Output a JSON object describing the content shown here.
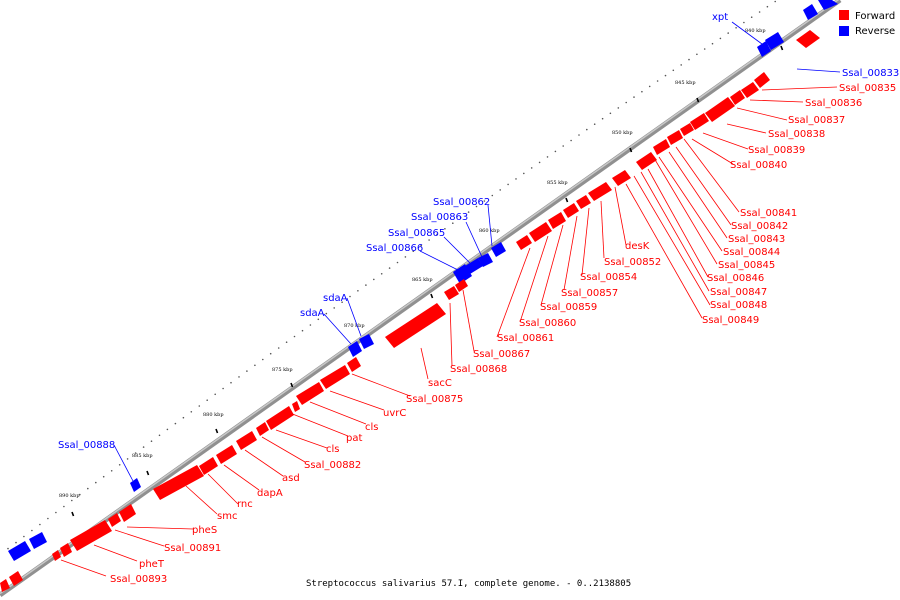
{
  "caption": "Streptococcus salivarius 57.I, complete genome. - 0..2138805",
  "legend": [
    {
      "label": "Forward",
      "color": "#ff0000"
    },
    {
      "label": "Reverse",
      "color": "#0000ff"
    }
  ],
  "colors": {
    "forward": "#ff0000",
    "reverse": "#0000ff",
    "backbone": "#808080"
  },
  "tick_labels": [
    "840 kbp",
    "845 kbp",
    "850 kbp",
    "855 kbp",
    "860 kbp",
    "865 kbp",
    "870 kbp",
    "875 kbp",
    "880 kbp",
    "885 kbp",
    "890 kbp"
  ],
  "reverse_labels": [
    "xpt",
    "Ssal_00833",
    "Ssal_00862",
    "Ssal_00863",
    "Ssal_00865",
    "Ssal_00866",
    "sdaA",
    "sdaA",
    "Ssal_00888"
  ],
  "forward_labels": [
    "Ssal_00835",
    "Ssal_00836",
    "Ssal_00837",
    "Ssal_00838",
    "Ssal_00839",
    "Ssal_00840",
    "Ssal_00841",
    "Ssal_00842",
    "Ssal_00843",
    "Ssal_00844",
    "Ssal_00845",
    "Ssal_00846",
    "Ssal_00847",
    "Ssal_00848",
    "Ssal_00849",
    "desK",
    "Ssal_00852",
    "Ssal_00854",
    "Ssal_00857",
    "Ssal_00859",
    "Ssal_00860",
    "Ssal_00861",
    "Ssal_00867",
    "Ssal_00868",
    "sacC",
    "Ssal_00875",
    "uvrC",
    "cls",
    "pat",
    "cls",
    "Ssal_00882",
    "asd",
    "dapA",
    "rnc",
    "smc",
    "pheS",
    "Ssal_00891",
    "pheT",
    "Ssal_00893"
  ]
}
